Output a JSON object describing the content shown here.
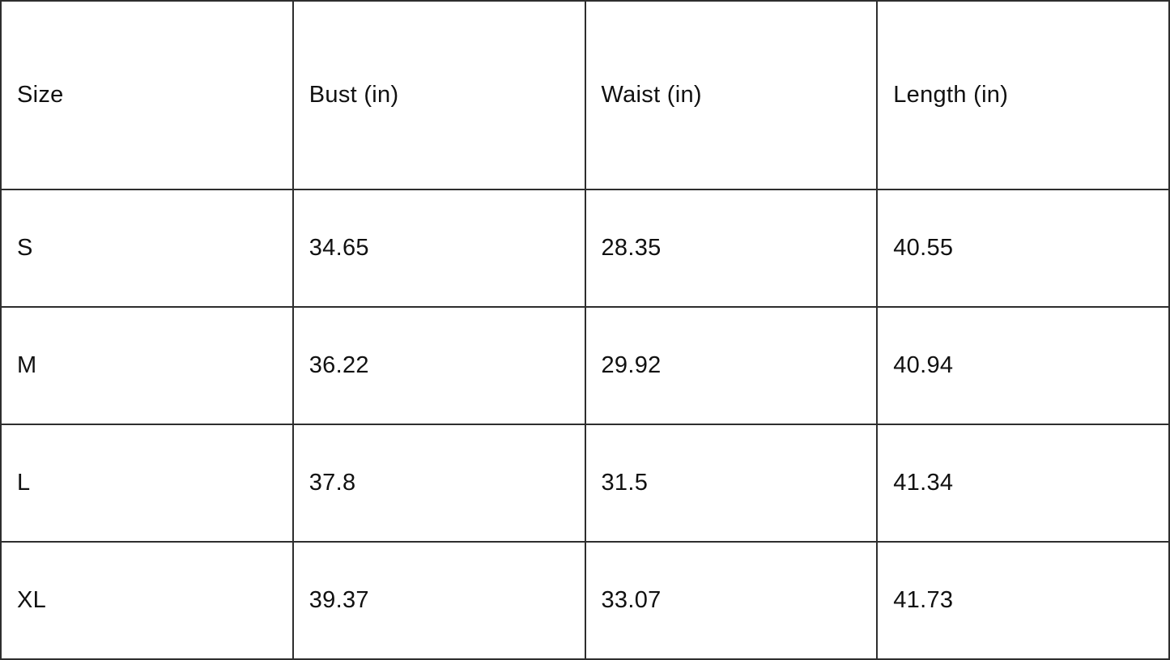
{
  "size_chart": {
    "columns": [
      {
        "label": "Size"
      },
      {
        "label": "Bust (in)"
      },
      {
        "label": "Waist (in)"
      },
      {
        "label": "Length (in)"
      }
    ],
    "rows": [
      {
        "size": "S",
        "bust": "34.65",
        "waist": "28.35",
        "length": "40.55"
      },
      {
        "size": "M",
        "bust": "36.22",
        "waist": "29.92",
        "length": "40.94"
      },
      {
        "size": "L",
        "bust": "37.8",
        "waist": "31.5",
        "length": "41.34"
      },
      {
        "size": "XL",
        "bust": "39.37",
        "waist": "33.07",
        "length": "41.73"
      }
    ],
    "colors": {
      "border": "#2e2e2e",
      "text": "#111111",
      "background": "#ffffff"
    }
  }
}
